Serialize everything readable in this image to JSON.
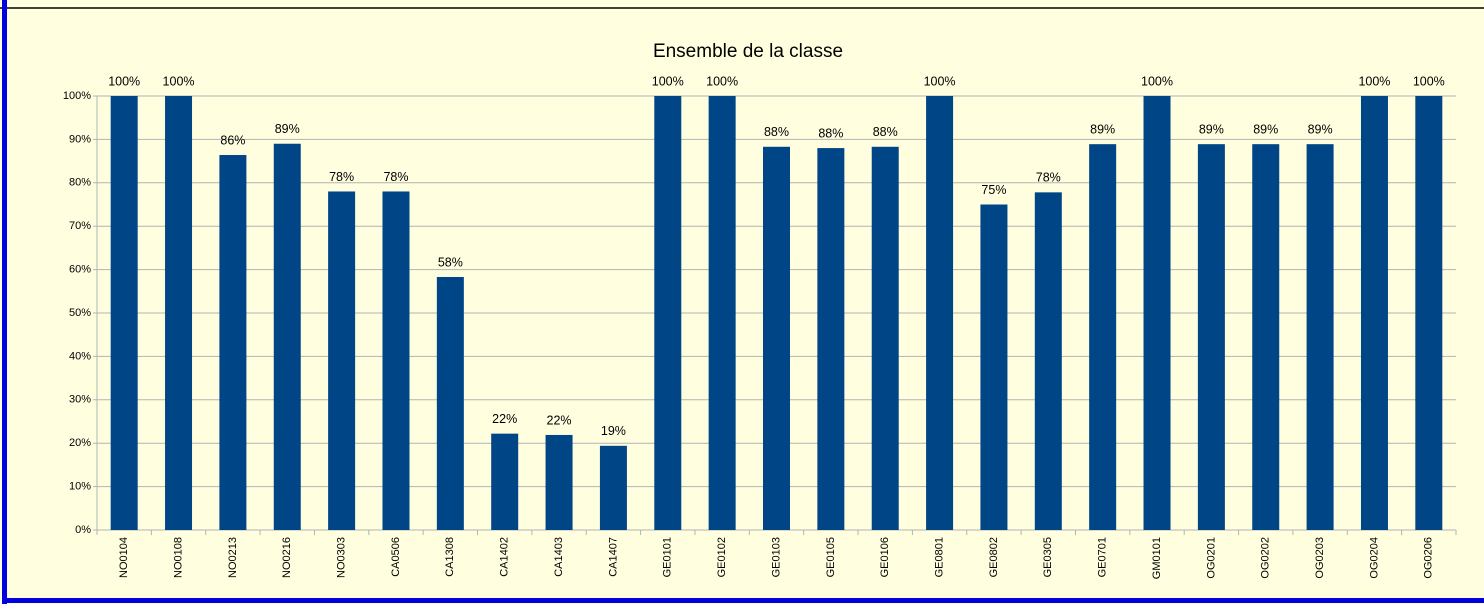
{
  "chart_data": {
    "type": "bar",
    "title": "Ensemble de la classe",
    "categories": [
      "NO0104",
      "NO0108",
      "NO0213",
      "NO0216",
      "NO0303",
      "CA0506",
      "CA1308",
      "CA1402",
      "CA1403",
      "CA1407",
      "GE0101",
      "GE0102",
      "GE0103",
      "GE0105",
      "GE0106",
      "GE0801",
      "GE0802",
      "GE0305",
      "GE0701",
      "GM0101",
      "OG0201",
      "OG0202",
      "OG0203",
      "OG0204",
      "OG0206"
    ],
    "values": [
      100,
      100,
      86.4,
      89,
      78,
      78,
      58.3,
      22.2,
      21.9,
      19.4,
      100,
      100,
      88.3,
      88,
      88.3,
      100,
      75,
      77.8,
      88.9,
      100,
      88.9,
      88.9,
      88.9,
      100,
      100
    ],
    "value_labels": [
      "100%",
      "100%",
      "86%",
      "89%",
      "78%",
      "78%",
      "58%",
      "22%",
      "22%",
      "19%",
      "100%",
      "100%",
      "88%",
      "88%",
      "88%",
      "100%",
      "75%",
      "78%",
      "89%",
      "100%",
      "89%",
      "89%",
      "89%",
      "100%",
      "100%"
    ],
    "color": "#004586",
    "ylim": [
      0,
      100
    ],
    "yticks": [
      {
        "value": 0,
        "label": "0%"
      },
      {
        "value": 10,
        "label": "10%"
      },
      {
        "value": 20,
        "label": "20%"
      },
      {
        "value": 30,
        "label": "30%"
      },
      {
        "value": 40,
        "label": "40%"
      },
      {
        "value": 50,
        "label": "50%"
      },
      {
        "value": 60,
        "label": "60%"
      },
      {
        "value": 70,
        "label": "70%"
      },
      {
        "value": 80,
        "label": "80%"
      },
      {
        "value": 90,
        "label": "90%"
      },
      {
        "value": 100,
        "label": "100%"
      }
    ],
    "grid": true
  }
}
